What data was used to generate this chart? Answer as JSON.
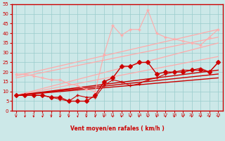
{
  "xlabel": "Vent moyen/en rafales ( km/h )",
  "xlim": [
    -0.5,
    23.5
  ],
  "ylim": [
    0,
    55
  ],
  "yticks": [
    0,
    5,
    10,
    15,
    20,
    25,
    30,
    35,
    40,
    45,
    50,
    55
  ],
  "xticks": [
    0,
    1,
    2,
    3,
    4,
    5,
    6,
    7,
    8,
    9,
    10,
    11,
    12,
    13,
    14,
    15,
    16,
    17,
    18,
    19,
    20,
    21,
    22,
    23
  ],
  "bg_color": "#cce8e8",
  "grid_color": "#99cccc",
  "axis_color": "#cc0000",
  "lines_straight": [
    {
      "x": [
        0,
        23
      ],
      "y": [
        18,
        42
      ],
      "color": "#ffaaaa",
      "lw": 0.9
    },
    {
      "x": [
        0,
        23
      ],
      "y": [
        17,
        38
      ],
      "color": "#ffaaaa",
      "lw": 0.9
    },
    {
      "x": [
        0,
        23
      ],
      "y": [
        8,
        35
      ],
      "color": "#ffaaaa",
      "lw": 0.9
    },
    {
      "x": [
        0,
        23
      ],
      "y": [
        8,
        28
      ],
      "color": "#ffaaaa",
      "lw": 0.9
    },
    {
      "x": [
        0,
        23
      ],
      "y": [
        8,
        21
      ],
      "color": "#cc0000",
      "lw": 1.0
    },
    {
      "x": [
        0,
        23
      ],
      "y": [
        8,
        19
      ],
      "color": "#cc0000",
      "lw": 1.0
    },
    {
      "x": [
        0,
        23
      ],
      "y": [
        8,
        17
      ],
      "color": "#cc0000",
      "lw": 1.0
    }
  ],
  "series": [
    {
      "x": [
        0,
        1,
        2,
        3,
        4,
        5,
        6,
        7,
        8,
        9,
        10,
        11,
        12,
        13,
        14,
        15,
        16,
        17,
        18,
        19,
        20,
        21,
        22,
        23
      ],
      "y": [
        19,
        19,
        18,
        17,
        16,
        16,
        14,
        13,
        11,
        10,
        29,
        44,
        39,
        42,
        42,
        52,
        40,
        38,
        37,
        36,
        35,
        34,
        38,
        42
      ],
      "color": "#ffaaaa",
      "lw": 0.8,
      "ms": 2.5,
      "marker": "+"
    },
    {
      "x": [
        0,
        1,
        2,
        3,
        4,
        5,
        6,
        7,
        8,
        9,
        10,
        11,
        12,
        13,
        14,
        15,
        16,
        17,
        18,
        19,
        20,
        21,
        22,
        23
      ],
      "y": [
        8,
        8,
        8,
        8,
        7,
        7,
        5,
        5,
        5,
        8,
        15,
        17,
        23,
        23,
        25,
        25,
        19,
        20,
        20,
        20,
        21,
        21,
        20,
        25
      ],
      "color": "#cc0000",
      "lw": 1.0,
      "ms": 3,
      "marker": "D"
    },
    {
      "x": [
        0,
        1,
        2,
        3,
        4,
        5,
        6,
        7,
        8,
        9,
        10,
        11,
        12,
        13,
        14,
        15,
        16,
        17,
        18,
        19,
        20,
        21,
        22,
        23
      ],
      "y": [
        8,
        8,
        8,
        8,
        7,
        6,
        5,
        8,
        7,
        7,
        13,
        16,
        15,
        13,
        14,
        16,
        17,
        19,
        20,
        21,
        21,
        22,
        20,
        25
      ],
      "color": "#cc0000",
      "lw": 0.8,
      "ms": 2.5,
      "marker": "+"
    }
  ],
  "wind_arrows": [
    0,
    1,
    2,
    3,
    4,
    5,
    6,
    7,
    8,
    9,
    10,
    11,
    12,
    13,
    14,
    15,
    16,
    17,
    18,
    19,
    20,
    21,
    22,
    23
  ]
}
